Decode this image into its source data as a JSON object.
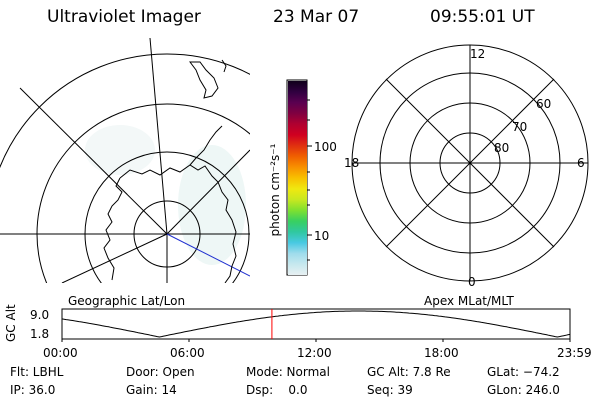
{
  "header": {
    "instrument": "Ultraviolet Imager",
    "date": "23 Mar 07",
    "time": "09:55:01 UT"
  },
  "colorbar": {
    "unit_label": "photon cm⁻²s⁻¹",
    "tick_100": "100",
    "tick_10": "10",
    "colors": [
      "#e8f0f2",
      "#c6e8ee",
      "#9fdcec",
      "#48c9e2",
      "#30c8a0",
      "#38d060",
      "#7ee030",
      "#c8e820",
      "#f0e810",
      "#f8c000",
      "#f89000",
      "#f06000",
      "#e03010",
      "#d00020",
      "#b00030",
      "#800040",
      "#5a0050",
      "#300040",
      "#10001a"
    ]
  },
  "left_panel": {
    "caption": "Geographic Lat/Lon"
  },
  "right_panel": {
    "caption": "Apex MLat/MLT",
    "mlt_labels": {
      "top": "12",
      "bottom": "0",
      "left": "18",
      "right": "6"
    },
    "lat_labels": [
      "60",
      "70",
      "80"
    ]
  },
  "timeline": {
    "ylabel": "GC Alt",
    "ymax": "9.0",
    "ymin": "1.8",
    "x_ticks": [
      "00:00",
      "06:00",
      "12:00",
      "18:00",
      "23:59"
    ],
    "current_time_hours": 9.917,
    "line_color": "#000000",
    "marker_color": "#ff0000"
  },
  "info": {
    "row1": {
      "flt": "Flt: LBHL",
      "door": "Door: Open",
      "mode": "Mode: Normal",
      "gc_alt": "GC Alt: 7.8 Re",
      "glat": "GLat: −74.2"
    },
    "row2": {
      "ip": "IP: 36.0",
      "gain": "Gain: 14",
      "dsp": "Dsp:    0.0",
      "seq": "Seq: 39",
      "glon": "GLon: 246.0"
    }
  }
}
